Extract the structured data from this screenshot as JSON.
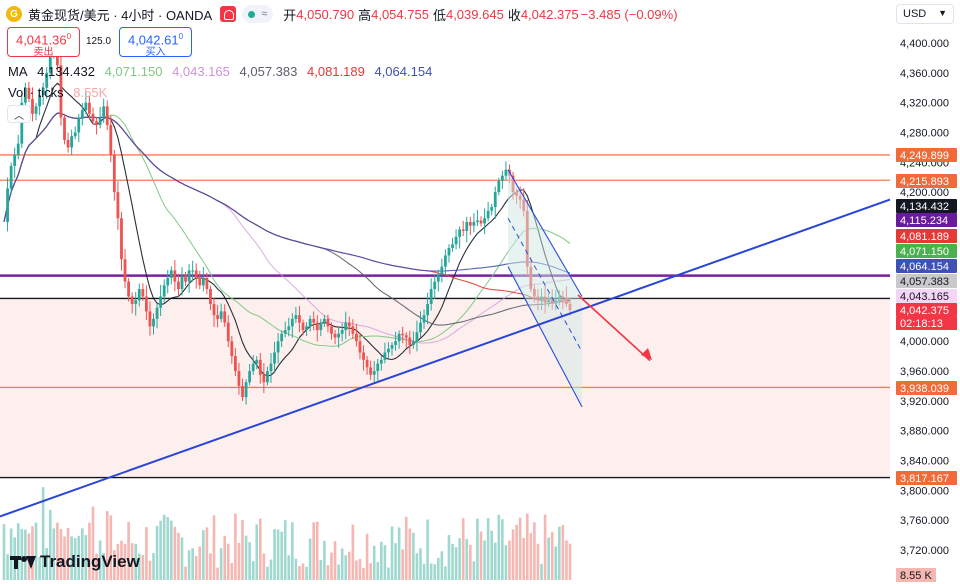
{
  "header": {
    "symbol": "黄金现货/美元 · 4小时 · OANDA",
    "open_label": "开",
    "open": "4,050.790",
    "high_label": "高",
    "high": "4,054.755",
    "low_label": "低",
    "low": "4,039.645",
    "close_label": "收",
    "close": "4,042.375",
    "change": "−3.485 (−0.09%)",
    "status_glyph": "≈"
  },
  "trade": {
    "sell_price": "4,041.36",
    "sell_sup": "0",
    "sell_label": "卖出",
    "spread": "125.0",
    "buy_price": "4,042.61",
    "buy_sup": "0",
    "buy_label": "买入"
  },
  "indicators": {
    "ma_label": "MA",
    "ma_values": [
      {
        "value": "4,134.432",
        "color": "#131722"
      },
      {
        "value": "4,071.150",
        "color": "#81c784"
      },
      {
        "value": "4,043.165",
        "color": "#ce93d8"
      },
      {
        "value": "4,057.383",
        "color": "#5c5f6b"
      },
      {
        "value": "4,081.189",
        "color": "#e53935"
      },
      {
        "value": "4,064.154",
        "color": "#3f51b5"
      }
    ],
    "vol_label": "Vol · ticks",
    "vol_value": "8.55",
    "vol_unit": "K",
    "collapse_glyph": "︿"
  },
  "currency": "USD",
  "branding": "TradingView",
  "chart_data": {
    "type": "candlestick",
    "symbol": "XAUUSD",
    "timeframe": "4H",
    "ylim": [
      3700,
      4420
    ],
    "y_ticks": [
      "3,720.000",
      "3,760.000",
      "3,800.000",
      "3,840.000",
      "3,880.000",
      "3,920.000",
      "3,960.000",
      "4,000.000",
      "4,040.000",
      "4,080.000",
      "4,120.000",
      "4,160.000",
      "4,200.000",
      "4,240.000",
      "4,280.000",
      "4,320.000",
      "4,360.000",
      "4,400.000"
    ],
    "closes": [
      4160,
      4205,
      4235,
      4250,
      4265,
      4320,
      4340,
      4325,
      4305,
      4315,
      4330,
      4340,
      4360,
      4385,
      4390,
      4370,
      4300,
      4270,
      4260,
      4275,
      4280,
      4300,
      4310,
      4320,
      4305,
      4295,
      4290,
      4300,
      4315,
      4290,
      4250,
      4200,
      4165,
      4110,
      4080,
      4060,
      4050,
      4055,
      4070,
      4060,
      4040,
      4020,
      4030,
      4045,
      4060,
      4075,
      4085,
      4095,
      4080,
      4070,
      4088,
      4080,
      4095,
      4095,
      4085,
      4075,
      4085,
      4070,
      4050,
      4035,
      4030,
      4040,
      4025,
      4000,
      3980,
      3960,
      3940,
      3925,
      3945,
      3960,
      3970,
      3975,
      3955,
      3945,
      3960,
      3970,
      3985,
      4000,
      4010,
      4015,
      4020,
      4030,
      4035,
      4025,
      4015,
      4020,
      4030,
      4025,
      4015,
      4025,
      4030,
      4020,
      4010,
      4005,
      4010,
      4015,
      4025,
      4020,
      4010,
      4000,
      3985,
      3975,
      3965,
      3955,
      3960,
      3970,
      3975,
      3985,
      3990,
      3995,
      4000,
      4010,
      4008,
      4005,
      3995,
      4000,
      4012,
      4025,
      4035,
      4050,
      4070,
      4080,
      4090,
      4100,
      4115,
      4125,
      4130,
      4140,
      4150,
      4148,
      4160,
      4155,
      4160,
      4162,
      4158,
      4165,
      4175,
      4180,
      4200,
      4215,
      4222,
      4230,
      4222,
      4200,
      4195,
      4190,
      4175,
      4100,
      4070,
      4060,
      4055,
      4060,
      4052,
      4058,
      4050,
      4055,
      4060,
      4058,
      4050,
      4042
    ],
    "horizontal_levels": [
      {
        "price": 4249.899,
        "label": "4,249.899",
        "color": "#f57c50"
      },
      {
        "price": 4215.893,
        "label": "4,215.893",
        "color": "#f57c50"
      },
      {
        "price": 4088,
        "label": "",
        "color": "#7b1fa2"
      },
      {
        "price": 4057.383,
        "label": "",
        "color": "#131722"
      },
      {
        "price": 3938.039,
        "label": "3,938.039",
        "color": "#f57c50"
      },
      {
        "price": 3817.167,
        "label": "3,817.167",
        "color": "#131722"
      }
    ],
    "price_labels": [
      {
        "value": "4,249.899",
        "color": "#ef6c3a"
      },
      {
        "value": "4,215.893",
        "color": "#ef6c3a"
      },
      {
        "value": "4,134.432",
        "color": "#131722"
      },
      {
        "value": "4,115.234",
        "color": "#6a1b9a"
      },
      {
        "value": "4,081.189",
        "color": "#e53935"
      },
      {
        "value": "4,071.150",
        "color": "#4caf50"
      },
      {
        "value": "4,064.154",
        "color": "#3f51b5"
      },
      {
        "value": "4,057.383",
        "color": "#c9c9c9"
      },
      {
        "value": "4,043.165",
        "color": "#f3d5f8"
      },
      {
        "value": "4,042.375",
        "color": "#f23645"
      },
      {
        "value": "3,938.039",
        "color": "#ef6c3a"
      },
      {
        "value": "3,817.167",
        "color": "#ef6c3a"
      }
    ],
    "countdown": "02:18:13",
    "volume_label": "8.55 K"
  }
}
